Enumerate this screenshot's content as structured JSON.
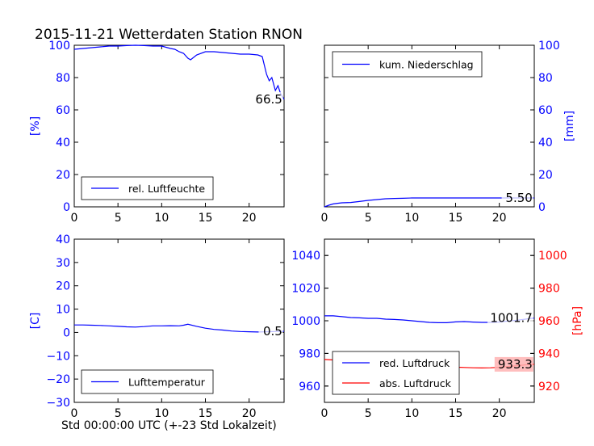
{
  "title": "2015-11-21 Wetterdaten Station RNON",
  "xlabel": "Std 00:00:00 UTC (+-23 Std Lokalzeit)",
  "colors": {
    "primary": "#0000ff",
    "secondary": "#ff0000",
    "text": "#000000"
  },
  "chart_data": [
    {
      "type": "line",
      "id": "humidity",
      "ylabel": "[%]",
      "yaxis_side": "left",
      "xlim": [
        0,
        24
      ],
      "ylim": [
        0,
        100
      ],
      "xticks": [
        0,
        5,
        10,
        15,
        20
      ],
      "yticks": [
        0,
        20,
        40,
        60,
        80,
        100
      ],
      "legend": "lower-left",
      "series": [
        {
          "name": "rel. Luftfeuchte",
          "color": "#0000ff",
          "x": [
            0,
            1,
            2,
            3,
            4,
            5,
            6,
            7,
            8,
            9,
            10,
            11,
            11.5,
            12,
            12.5,
            13,
            13.3,
            14,
            15,
            16,
            17,
            18,
            19,
            20,
            21,
            21.5,
            22,
            22.3,
            22.6,
            23,
            23.3,
            23.6,
            24
          ],
          "y": [
            97.5,
            98,
            98.5,
            99,
            99.5,
            99.5,
            99.8,
            100,
            99.8,
            99.5,
            99.5,
            98,
            97.5,
            96,
            95,
            92,
            91,
            94,
            96,
            96,
            95.5,
            95,
            94.5,
            94.5,
            94,
            93,
            82,
            78,
            80,
            72,
            75,
            70,
            66.5
          ]
        }
      ],
      "annotations": [
        {
          "text": "66.5",
          "x": 23.8,
          "y": 66.5
        }
      ]
    },
    {
      "type": "line",
      "id": "precipitation",
      "ylabel": "[mm]",
      "yaxis_side": "right",
      "xlim": [
        0,
        24
      ],
      "ylim": [
        0,
        100
      ],
      "xticks": [
        0,
        5,
        10,
        15,
        20
      ],
      "yticks": [
        0,
        20,
        40,
        60,
        80,
        100
      ],
      "legend": "top-left",
      "series": [
        {
          "name": "kum. Niederschlag",
          "color": "#0000ff",
          "x": [
            0,
            0.5,
            1,
            1.5,
            2,
            3,
            4,
            5,
            6,
            7,
            8,
            9,
            10,
            15,
            20,
            24
          ],
          "y": [
            0,
            1,
            1.8,
            2.2,
            2.5,
            2.7,
            3.3,
            4,
            4.5,
            5,
            5.2,
            5.3,
            5.5,
            5.5,
            5.5,
            5.5
          ]
        }
      ],
      "annotations": [
        {
          "text": "5.50",
          "x": 23.8,
          "y": 5.5
        }
      ]
    },
    {
      "type": "line",
      "id": "temperature",
      "ylabel": "[C]",
      "yaxis_side": "left",
      "xlim": [
        0,
        24
      ],
      "ylim": [
        -30,
        40
      ],
      "xticks": [
        0,
        5,
        10,
        15,
        20
      ],
      "yticks": [
        -30,
        -20,
        -10,
        0,
        10,
        20,
        30,
        40
      ],
      "legend": "lower-left",
      "series": [
        {
          "name": "Lufttemperatur",
          "color": "#0000ff",
          "x": [
            0,
            1,
            2,
            3,
            4,
            5,
            6,
            7,
            8,
            9,
            10,
            11,
            12,
            12.5,
            13,
            14,
            15,
            16,
            17,
            18,
            19,
            20,
            21,
            22,
            23,
            24
          ],
          "y": [
            3.2,
            3.2,
            3.1,
            3,
            2.8,
            2.6,
            2.4,
            2.3,
            2.5,
            2.8,
            2.8,
            2.9,
            2.8,
            3.1,
            3.5,
            2.6,
            1.8,
            1.3,
            1,
            0.6,
            0.4,
            0.3,
            0.2,
            0.3,
            0.4,
            0.5
          ]
        }
      ],
      "annotations": [
        {
          "text": "0.5",
          "x": 23.8,
          "y": 0.5
        }
      ]
    },
    {
      "type": "line",
      "id": "pressure",
      "ylabel_right": "[hPa]",
      "xlim": [
        0,
        24
      ],
      "ylim_left": [
        950,
        1050
      ],
      "ylim_right": [
        910,
        1010
      ],
      "xticks": [
        0,
        5,
        10,
        15,
        20
      ],
      "yticks_left": [
        960,
        980,
        1000,
        1020,
        1040
      ],
      "yticks_right": [
        920,
        940,
        960,
        980,
        1000
      ],
      "legend": "lower-left",
      "series": [
        {
          "name": "red. Luftdruck",
          "color": "#0000ff",
          "axis": "left",
          "x": [
            0,
            1,
            2,
            3,
            4,
            5,
            6,
            7,
            8,
            9,
            10,
            11,
            12,
            13,
            14,
            15,
            16,
            17,
            18,
            19,
            20,
            21,
            22,
            23,
            24
          ],
          "y": [
            1003,
            1003,
            1002.5,
            1002,
            1001.8,
            1001.5,
            1001.5,
            1001,
            1000.8,
            1000.5,
            1000,
            999.5,
            999,
            998.8,
            998.8,
            999.3,
            999.5,
            999.2,
            999,
            999,
            999.2,
            999.8,
            1000.3,
            1001,
            1001.7
          ]
        },
        {
          "name": "abs. Luftdruck",
          "color": "#ff0000",
          "axis": "right",
          "x": [
            0,
            1,
            2,
            3,
            4,
            5,
            6,
            7,
            8,
            9,
            10,
            11,
            12,
            13,
            14,
            15,
            16,
            17,
            18,
            19,
            20,
            21,
            22,
            23,
            24
          ],
          "y": [
            936.3,
            936,
            935.6,
            935.2,
            934.8,
            934.5,
            934.2,
            933.8,
            933.5,
            933.2,
            932.9,
            932.5,
            932.2,
            931.9,
            931.7,
            931.6,
            931.4,
            931.2,
            931.1,
            931.2,
            931.5,
            932,
            932.5,
            933,
            933.3
          ]
        }
      ],
      "annotations": [
        {
          "text": "1001.7",
          "x": 23.8,
          "y": 1001.7,
          "axis": "left"
        },
        {
          "text": "933.3",
          "x": 23.8,
          "y": 933.3,
          "axis": "right",
          "highlight": "#ffb3b3"
        }
      ]
    }
  ]
}
